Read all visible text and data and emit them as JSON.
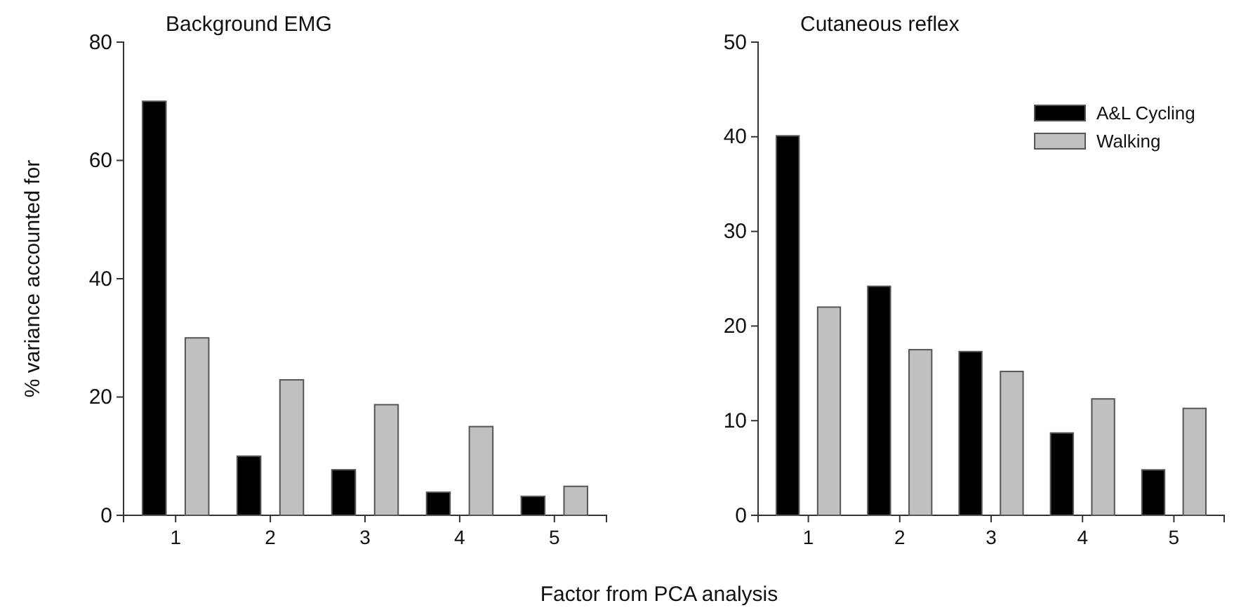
{
  "chart_data": [
    {
      "type": "bar",
      "title": "Background EMG",
      "xlabel": "Factor from PCA analysis",
      "ylabel": "% variance accounted for",
      "categories": [
        "1",
        "2",
        "3",
        "4",
        "5"
      ],
      "series": [
        {
          "color": "#000000",
          "values": [
            70,
            10,
            7.7,
            3.9,
            3.2
          ]
        },
        {
          "color": "#c0c0c0",
          "values": [
            30,
            22.9,
            18.7,
            15,
            4.9
          ]
        }
      ],
      "ylim": [
        0,
        80
      ],
      "yticks": [
        0,
        20,
        40,
        60,
        80
      ],
      "legend": false
    },
    {
      "type": "bar",
      "title": "Cutaneous reflex",
      "categories": [
        "1",
        "2",
        "3",
        "4",
        "5"
      ],
      "series": [
        {
          "name": "A&L Cycling",
          "color": "#000000",
          "values": [
            40.1,
            24.2,
            17.3,
            8.7,
            4.8
          ]
        },
        {
          "name": "Walking",
          "color": "#c0c0c0",
          "values": [
            22,
            17.5,
            15.2,
            12.3,
            11.3
          ]
        }
      ],
      "ylim": [
        0,
        50
      ],
      "yticks": [
        0,
        10,
        20,
        30,
        40,
        50
      ],
      "legend": "top right"
    }
  ]
}
